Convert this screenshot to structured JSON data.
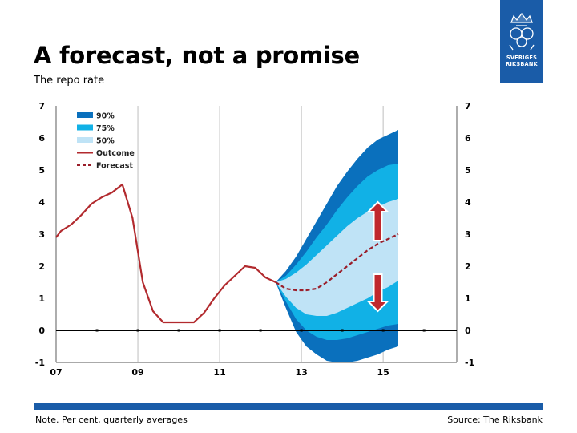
{
  "header": {
    "title": "A forecast, not a promise",
    "subtitle": "The repo rate"
  },
  "logo": {
    "brand_line1": "SVERIGES",
    "brand_line2": "RIKSBANK",
    "icon": "riksbank-crest-icon",
    "color": "#1a5ca8"
  },
  "footer": {
    "note": "Note. Per cent, quarterly averages",
    "source": "Source: The Riksbank"
  },
  "colors": {
    "band_90": "#0a70bd",
    "band_75": "#11b1e6",
    "band_50": "#bfe3f6",
    "outcome": "#b22a2e",
    "forecast": "#9a1e2a",
    "arrow": "#c0272d"
  },
  "chart_data": {
    "type": "line",
    "title": "The repo rate",
    "ylim": [
      -1,
      7
    ],
    "yticks": [
      -1,
      0,
      1,
      2,
      3,
      4,
      5,
      6,
      7
    ],
    "xlim": [
      2007,
      2016.8
    ],
    "xticks": [
      {
        "value": 2007,
        "label": "07"
      },
      {
        "value": 2009,
        "label": "09"
      },
      {
        "value": 2011,
        "label": "11"
      },
      {
        "value": 2013,
        "label": "13"
      },
      {
        "value": 2015,
        "label": "15"
      }
    ],
    "grid": "vertical lines at year ticks",
    "legend": [
      {
        "key": "band_90",
        "kind": "patch",
        "label": "90%"
      },
      {
        "key": "band_75",
        "kind": "patch",
        "label": "75%"
      },
      {
        "key": "band_50",
        "kind": "patch",
        "label": "50%"
      },
      {
        "key": "outcome",
        "kind": "line",
        "label": "Outcome"
      },
      {
        "key": "forecast",
        "kind": "dashed",
        "label": "Forecast"
      }
    ],
    "legend_position": "top-left",
    "series": [
      {
        "name": "Outcome",
        "style": "solid",
        "points": [
          [
            2007.0,
            2.9
          ],
          [
            2007.12,
            3.1
          ],
          [
            2007.37,
            3.3
          ],
          [
            2007.62,
            3.6
          ],
          [
            2007.87,
            3.95
          ],
          [
            2008.12,
            4.15
          ],
          [
            2008.37,
            4.3
          ],
          [
            2008.62,
            4.55
          ],
          [
            2008.87,
            3.5
          ],
          [
            2009.12,
            1.5
          ],
          [
            2009.37,
            0.6
          ],
          [
            2009.62,
            0.25
          ],
          [
            2009.87,
            0.25
          ],
          [
            2010.12,
            0.25
          ],
          [
            2010.37,
            0.25
          ],
          [
            2010.62,
            0.55
          ],
          [
            2010.87,
            1.0
          ],
          [
            2011.12,
            1.4
          ],
          [
            2011.37,
            1.7
          ],
          [
            2011.62,
            2.0
          ],
          [
            2011.87,
            1.95
          ],
          [
            2012.12,
            1.65
          ],
          [
            2012.37,
            1.5
          ]
        ]
      },
      {
        "name": "Forecast",
        "style": "dashed",
        "points": [
          [
            2012.37,
            1.5
          ],
          [
            2012.62,
            1.3
          ],
          [
            2012.87,
            1.25
          ],
          [
            2013.12,
            1.25
          ],
          [
            2013.37,
            1.3
          ],
          [
            2013.62,
            1.5
          ],
          [
            2013.87,
            1.75
          ],
          [
            2014.12,
            2.0
          ],
          [
            2014.37,
            2.25
          ],
          [
            2014.62,
            2.5
          ],
          [
            2014.87,
            2.7
          ],
          [
            2015.12,
            2.85
          ],
          [
            2015.37,
            3.0
          ]
        ]
      }
    ],
    "bands": [
      {
        "name": "90%",
        "x": [
          2012.37,
          2012.62,
          2012.87,
          2013.12,
          2013.37,
          2013.62,
          2013.87,
          2014.12,
          2014.37,
          2014.62,
          2014.87,
          2015.12,
          2015.37
        ],
        "upper": [
          1.5,
          1.85,
          2.3,
          2.85,
          3.4,
          3.95,
          4.5,
          4.95,
          5.35,
          5.7,
          5.95,
          6.1,
          6.25
        ],
        "lower": [
          1.5,
          0.7,
          -0.05,
          -0.5,
          -0.75,
          -0.95,
          -1.0,
          -1.0,
          -0.95,
          -0.85,
          -0.75,
          -0.6,
          -0.5
        ]
      },
      {
        "name": "75%",
        "x": [
          2012.37,
          2012.62,
          2012.87,
          2013.12,
          2013.37,
          2013.62,
          2013.87,
          2014.12,
          2014.37,
          2014.62,
          2014.87,
          2015.12,
          2015.37
        ],
        "upper": [
          1.5,
          1.7,
          2.05,
          2.45,
          2.9,
          3.3,
          3.75,
          4.15,
          4.5,
          4.8,
          5.0,
          5.15,
          5.2
        ],
        "lower": [
          1.5,
          0.9,
          0.35,
          0.0,
          -0.2,
          -0.3,
          -0.3,
          -0.25,
          -0.15,
          -0.05,
          0.05,
          0.15,
          0.2
        ]
      },
      {
        "name": "50%",
        "x": [
          2012.37,
          2012.62,
          2012.87,
          2013.12,
          2013.37,
          2013.62,
          2013.87,
          2014.12,
          2014.37,
          2014.62,
          2014.87,
          2015.12,
          2015.37
        ],
        "upper": [
          1.5,
          1.6,
          1.8,
          2.05,
          2.35,
          2.65,
          2.95,
          3.25,
          3.5,
          3.7,
          3.85,
          4.0,
          4.1
        ],
        "lower": [
          1.5,
          1.05,
          0.7,
          0.5,
          0.45,
          0.45,
          0.55,
          0.7,
          0.85,
          1.0,
          1.2,
          1.35,
          1.55
        ]
      }
    ],
    "annotations": [
      {
        "type": "arrow-up",
        "x": 2014.87,
        "y_from": 2.8,
        "y_to": 4.0
      },
      {
        "type": "arrow-down",
        "x": 2014.87,
        "y_from": 1.75,
        "y_to": 0.6
      }
    ]
  }
}
